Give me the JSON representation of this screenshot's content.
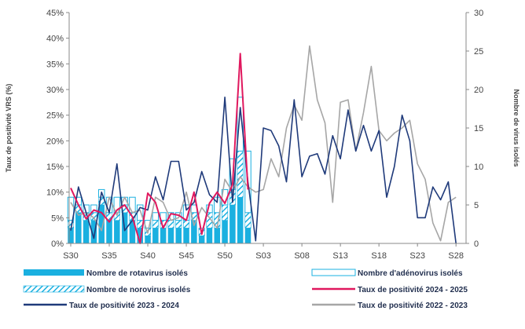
{
  "chart_data": {
    "type": "bar",
    "y_left": {
      "label": "Taux de positivité VRS (%)",
      "ticks": [
        "0%",
        "5%",
        "10%",
        "15%",
        "20%",
        "25%",
        "30%",
        "35%",
        "40%",
        "45%"
      ],
      "ylim": [
        0,
        45
      ]
    },
    "y_right": {
      "label": "Nombre de virus isolés",
      "ticks": [
        "0",
        "5",
        "10",
        "15",
        "20",
        "25",
        "30"
      ],
      "ylim": [
        0,
        30
      ]
    },
    "x_ticks": [
      "S30",
      "S35",
      "S40",
      "S45",
      "S50",
      "S03",
      "S08",
      "S13",
      "S18",
      "S23",
      "S28"
    ],
    "weeks": [
      "S30",
      "S31",
      "S32",
      "S33",
      "S34",
      "S35",
      "S36",
      "S37",
      "S38",
      "S39",
      "S40",
      "S41",
      "S42",
      "S43",
      "S44",
      "S45",
      "S46",
      "S47",
      "S48",
      "S49",
      "S50",
      "S51",
      "S52",
      "S01",
      "S02",
      "S03",
      "S04",
      "S05",
      "S06",
      "S07",
      "S08",
      "S09",
      "S10",
      "S11",
      "S12",
      "S13",
      "S14",
      "S15",
      "S16",
      "S17",
      "S18",
      "S19",
      "S20",
      "S21",
      "S22",
      "S23",
      "S24",
      "S25",
      "S26",
      "S27",
      "S28",
      "S29"
    ],
    "series": [
      {
        "name": "Nombre de rotavirus isolés",
        "kind": "bar",
        "axis": "right",
        "color": "#1ab0e0",
        "values": [
          2,
          4,
          3,
          3,
          5,
          3,
          3,
          4,
          3,
          2,
          1,
          2,
          2,
          2,
          2,
          2,
          3,
          1,
          2,
          2,
          3,
          5,
          6,
          2
        ]
      },
      {
        "name": "Nombre de norovirus isolés",
        "kind": "bar",
        "axis": "right",
        "color": "#1ab0e0",
        "values": [
          1,
          1,
          1,
          1,
          1,
          1,
          1,
          1,
          1,
          1,
          1,
          1,
          1,
          1,
          1,
          1,
          1,
          1,
          2,
          2,
          2,
          2,
          6,
          2
        ]
      },
      {
        "name": "Nombre d'adénovirus isolés",
        "kind": "bar",
        "axis": "right",
        "color": "#1ab0e0",
        "values": [
          3,
          1,
          1,
          1,
          1,
          2,
          2,
          1,
          2,
          2,
          1,
          1,
          1,
          1,
          1,
          2,
          1,
          0,
          1,
          2,
          2,
          4,
          7,
          8
        ]
      },
      {
        "name": "Taux de positivité 2024 - 2025",
        "kind": "line",
        "axis": "left",
        "color": "#e0185e",
        "values": [
          10.8,
          7.5,
          4.8,
          6.5,
          6.0,
          4.2,
          6.5,
          7.5,
          5.2,
          0,
          9.8,
          8.0,
          3.0,
          5.8,
          5.5,
          4.5,
          10.0,
          1.8,
          7.8,
          10.0,
          7.8,
          11.5,
          37.0,
          10.5
        ]
      },
      {
        "name": "Taux de positivité 2023 - 2024",
        "kind": "line",
        "axis": "left",
        "color": "#1f3a7a",
        "values": [
          2.5,
          11.0,
          6.0,
          1.0,
          10.0,
          6.0,
          15.5,
          2.5,
          4.5,
          7.0,
          6.5,
          13.0,
          8.5,
          16.0,
          16.0,
          6.5,
          8.0,
          14.0,
          9.5,
          8.0,
          28.5,
          8.0,
          26.5,
          12.0,
          0.5,
          22.5,
          22.0,
          19.0,
          12.0,
          28.0,
          13.0,
          17.0,
          17.5,
          13.5,
          21.0,
          16.5,
          26.0,
          18.0,
          23.0,
          18.0,
          22.0,
          9.0,
          15.0,
          25.0,
          20.0,
          5.0,
          5.0,
          11.0,
          8.5,
          12.0,
          0
        ]
      },
      {
        "name": "Taux de positivité 2022 - 2023",
        "kind": "line",
        "axis": "left",
        "color": "#a6a6a6",
        "values": [
          8.0,
          5.5,
          6.0,
          5.0,
          2.5,
          9.0,
          5.5,
          9.0,
          6.0,
          6.5,
          2.0,
          9.0,
          8.0,
          4.5,
          5.0,
          10.0,
          3.5,
          7.0,
          5.0,
          3.0,
          12.5,
          10.0,
          13.0,
          11.0,
          10.0,
          10.5,
          16.5,
          13.0,
          22.5,
          27.0,
          24.0,
          38.5,
          28.0,
          23.5,
          8.0,
          27.5,
          28.0,
          18.0,
          25.5,
          34.5,
          22.0,
          20.0,
          21.5,
          22.5,
          24.0,
          15.5,
          12.5,
          4.0,
          0.5,
          8.0,
          9.0
        ]
      }
    ],
    "legend": [
      {
        "label": "Nombre de rotavirus isolés",
        "style": "solid-bar"
      },
      {
        "label": "Nombre d'adénovirus isolés",
        "style": "outline-bar"
      },
      {
        "label": "Nombre de norovirus isolés",
        "style": "hatched-bar"
      },
      {
        "label": "Taux de positivité 2024 - 2025",
        "style": "line"
      },
      {
        "label": "Taux de positivité 2023 - 2024",
        "style": "line"
      },
      {
        "label": "Taux de positivité 2022 - 2023",
        "style": "line"
      }
    ],
    "grid": false,
    "legend_position": "bottom"
  }
}
